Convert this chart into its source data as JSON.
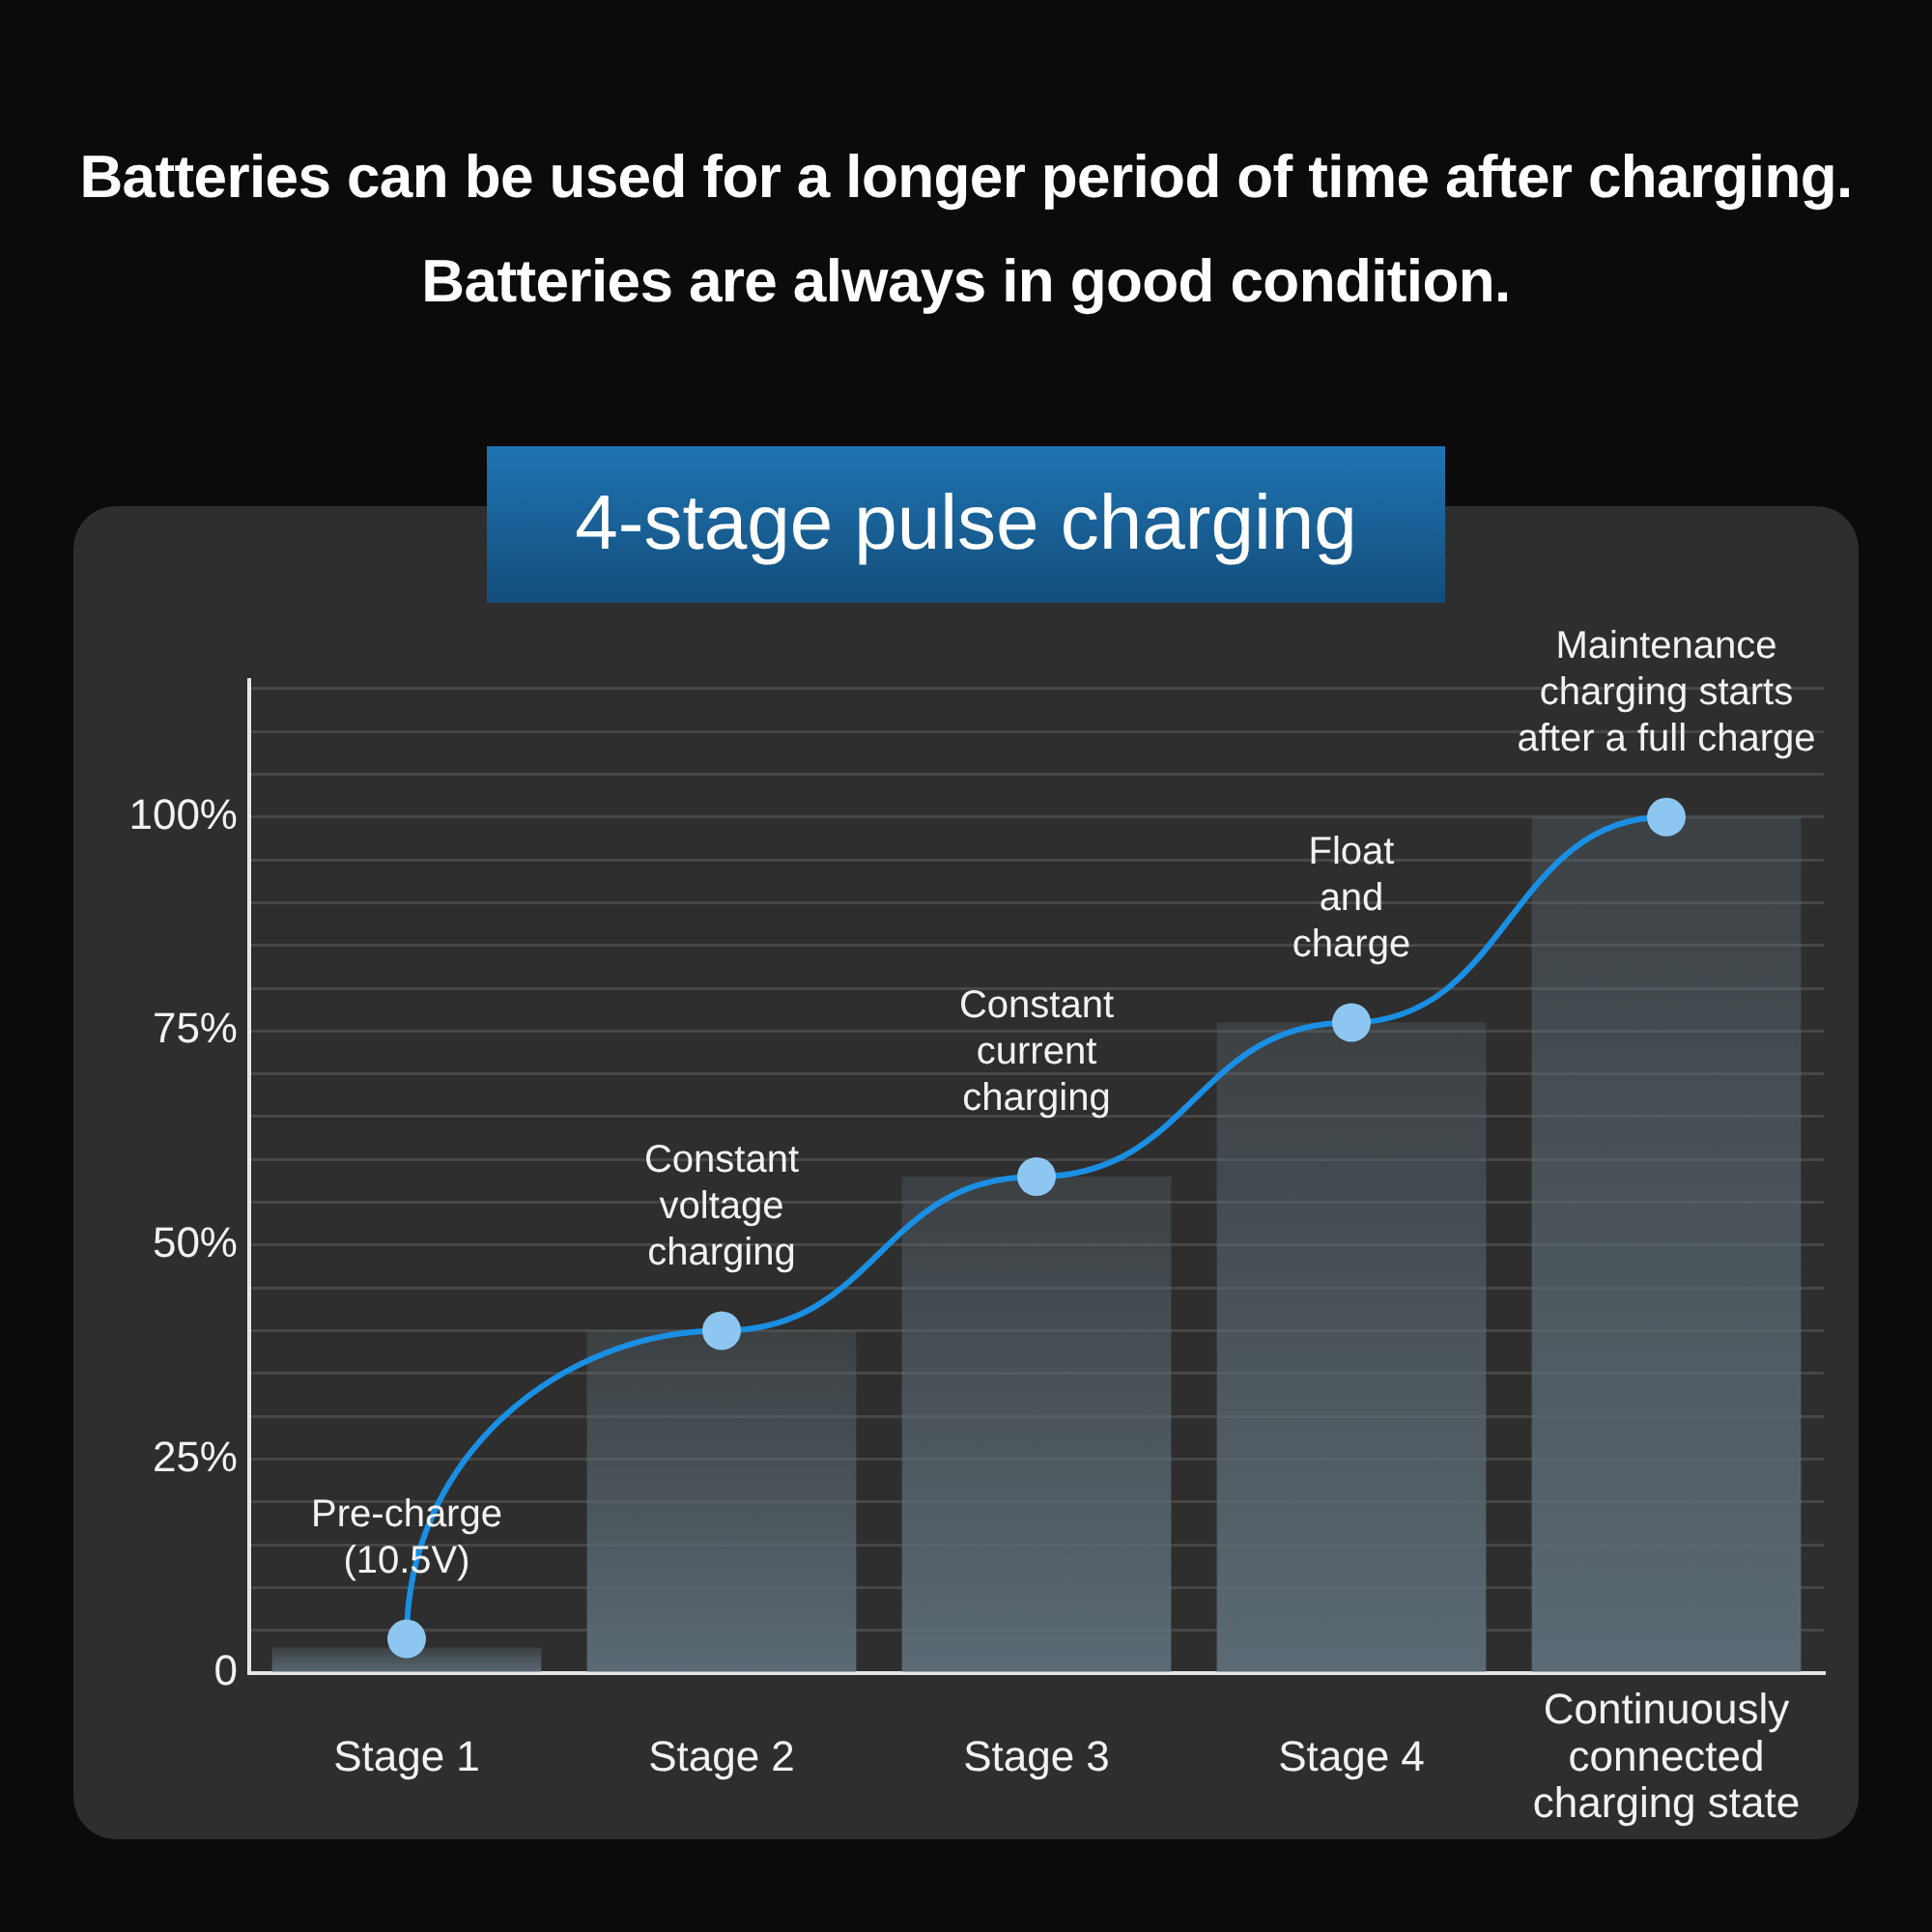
{
  "chart_data": {
    "type": "bar",
    "title": "4-stage pulse charging",
    "annotations": [
      "Batteries can be used for a longer period of time after charging.",
      "Batteries are always in good condition.",
      {
        "text": "Pre-charge (10.5V)",
        "x": "Stage 1",
        "y": 4
      },
      {
        "text": "Constant voltage charging",
        "x": "Stage 2",
        "y": 40
      },
      {
        "text": "Constant current charging",
        "x": "Stage 3",
        "y": 58
      },
      {
        "text": "Float and charge",
        "x": "Stage 4",
        "y": 76
      },
      {
        "text": "Maintenance charging starts after a full charge",
        "x": "Continuously connected charging state",
        "y": 100
      }
    ],
    "categories": [
      "Stage 1",
      "Stage 2",
      "Stage 3",
      "Stage 4",
      "Continuously connected charging state"
    ],
    "series": [
      {
        "color": "#5b6a74",
        "values": [
          3,
          40,
          58,
          76,
          100
        ]
      },
      {
        "type": "line",
        "color": "#1a8fe3",
        "values": [
          4,
          40,
          58,
          76,
          100
        ]
      }
    ],
    "ylim": [
      0,
      116
    ],
    "yticks": [
      0,
      {
        "value": 5,
        "label": null
      },
      {
        "value": 10,
        "label": null
      },
      {
        "value": 15,
        "label": null
      },
      {
        "value": 20,
        "label": null
      },
      {
        "value": 25,
        "label": "25%"
      },
      {
        "value": 30,
        "label": null
      },
      {
        "value": 35,
        "label": null
      },
      {
        "value": 40,
        "label": null
      },
      {
        "value": 45,
        "label": null
      },
      {
        "value": 50,
        "label": "50%"
      },
      {
        "value": 55,
        "label": null
      },
      {
        "value": 60,
        "label": null
      },
      {
        "value": 65,
        "label": null
      },
      {
        "value": 70,
        "label": null
      },
      {
        "value": 75,
        "label": "75%"
      },
      {
        "value": 80,
        "label": null
      },
      {
        "value": 85,
        "label": null
      },
      {
        "value": 90,
        "label": null
      },
      {
        "value": 95,
        "label": null
      },
      {
        "value": 100,
        "label": "100%"
      },
      {
        "value": 105,
        "label": null
      },
      {
        "value": 110,
        "label": null
      },
      {
        "value": 115,
        "label": null
      }
    ],
    "grid": "y",
    "marker": "circle",
    "legend": false
  }
}
